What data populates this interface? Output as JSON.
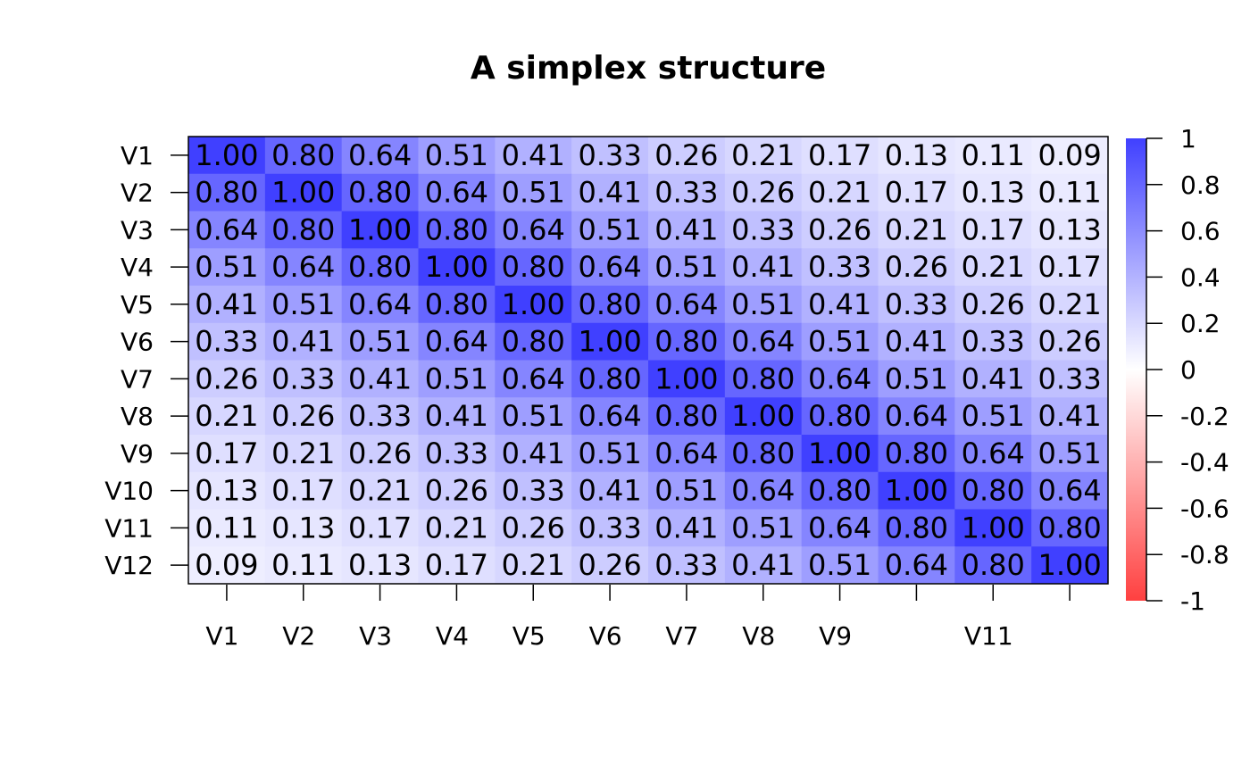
{
  "chart_data": {
    "type": "heatmap",
    "title": "A simplex structure",
    "x": [
      "V1",
      "V2",
      "V3",
      "V4",
      "V5",
      "V6",
      "V7",
      "V8",
      "V9",
      null,
      "V11",
      null
    ],
    "y": [
      "V1",
      "V2",
      "V3",
      "V4",
      "V5",
      "V6",
      "V7",
      "V8",
      "V9",
      "V10",
      "V11",
      "V12"
    ],
    "values": [
      [
        1,
        0.8,
        0.64,
        0.51,
        0.41,
        0.33,
        0.26,
        0.21,
        0.17,
        0.13,
        0.11,
        0.09
      ],
      [
        0.8,
        1,
        0.8,
        0.64,
        0.51,
        0.41,
        0.33,
        0.26,
        0.21,
        0.17,
        0.13,
        0.11
      ],
      [
        0.64,
        0.8,
        1,
        0.8,
        0.64,
        0.51,
        0.41,
        0.33,
        0.26,
        0.21,
        0.17,
        0.13
      ],
      [
        0.51,
        0.64,
        0.8,
        1,
        0.8,
        0.64,
        0.51,
        0.41,
        0.33,
        0.26,
        0.21,
        0.17
      ],
      [
        0.41,
        0.51,
        0.64,
        0.8,
        1,
        0.8,
        0.64,
        0.51,
        0.41,
        0.33,
        0.26,
        0.21
      ],
      [
        0.33,
        0.41,
        0.51,
        0.64,
        0.8,
        1,
        0.8,
        0.64,
        0.51,
        0.41,
        0.33,
        0.26
      ],
      [
        0.26,
        0.33,
        0.41,
        0.51,
        0.64,
        0.8,
        1,
        0.8,
        0.64,
        0.51,
        0.41,
        0.33
      ],
      [
        0.21,
        0.26,
        0.33,
        0.41,
        0.51,
        0.64,
        0.8,
        1,
        0.8,
        0.64,
        0.51,
        0.41
      ],
      [
        0.17,
        0.21,
        0.26,
        0.33,
        0.41,
        0.51,
        0.64,
        0.8,
        1,
        0.8,
        0.64,
        0.51
      ],
      [
        0.13,
        0.17,
        0.21,
        0.26,
        0.33,
        0.41,
        0.51,
        0.64,
        0.8,
        1,
        0.8,
        0.64
      ],
      [
        0.11,
        0.13,
        0.17,
        0.21,
        0.26,
        0.33,
        0.41,
        0.51,
        0.64,
        0.8,
        1,
        0.8
      ],
      [
        0.09,
        0.11,
        0.13,
        0.17,
        0.21,
        0.26,
        0.33,
        0.41,
        0.51,
        0.64,
        0.8,
        1
      ]
    ],
    "value_labels": [
      [
        "1.00",
        "0.80",
        "0.64",
        "0.51",
        "0.41",
        "0.33",
        "0.26",
        "0.21",
        "0.17",
        "0.13",
        "0.11",
        "0.09"
      ],
      [
        "0.80",
        "1.00",
        "0.80",
        "0.64",
        "0.51",
        "0.41",
        "0.33",
        "0.26",
        "0.21",
        "0.17",
        "0.13",
        "0.11"
      ],
      [
        "0.64",
        "0.80",
        "1.00",
        "0.80",
        "0.64",
        "0.51",
        "0.41",
        "0.33",
        "0.26",
        "0.21",
        "0.17",
        "0.13"
      ],
      [
        "0.51",
        "0.64",
        "0.80",
        "1.00",
        "0.80",
        "0.64",
        "0.51",
        "0.41",
        "0.33",
        "0.26",
        "0.21",
        "0.17"
      ],
      [
        "0.41",
        "0.51",
        "0.64",
        "0.80",
        "1.00",
        "0.80",
        "0.64",
        "0.51",
        "0.41",
        "0.33",
        "0.26",
        "0.21"
      ],
      [
        "0.33",
        "0.41",
        "0.51",
        "0.64",
        "0.80",
        "1.00",
        "0.80",
        "0.64",
        "0.51",
        "0.41",
        "0.33",
        "0.26"
      ],
      [
        "0.26",
        "0.33",
        "0.41",
        "0.51",
        "0.64",
        "0.80",
        "1.00",
        "0.80",
        "0.64",
        "0.51",
        "0.41",
        "0.33"
      ],
      [
        "0.21",
        "0.26",
        "0.33",
        "0.41",
        "0.51",
        "0.64",
        "0.80",
        "1.00",
        "0.80",
        "0.64",
        "0.51",
        "0.41"
      ],
      [
        "0.17",
        "0.21",
        "0.26",
        "0.33",
        "0.41",
        "0.51",
        "0.64",
        "0.80",
        "1.00",
        "0.80",
        "0.64",
        "0.51"
      ],
      [
        "0.13",
        "0.17",
        "0.21",
        "0.26",
        "0.33",
        "0.41",
        "0.51",
        "0.64",
        "0.80",
        "1.00",
        "0.80",
        "0.64"
      ],
      [
        "0.11",
        "0.13",
        "0.17",
        "0.21",
        "0.26",
        "0.33",
        "0.41",
        "0.51",
        "0.64",
        "0.80",
        "1.00",
        "0.80"
      ],
      [
        "0.09",
        "0.11",
        "0.13",
        "0.17",
        "0.21",
        "0.26",
        "0.33",
        "0.41",
        "0.51",
        "0.64",
        "0.80",
        "1.00"
      ]
    ],
    "colorscale": [
      "#ff4040",
      "#ffffff",
      "#4040ff"
    ],
    "clim": [
      -1,
      1
    ],
    "cticks": [
      -1,
      -0.8,
      -0.6,
      -0.4,
      -0.2,
      0,
      0.2,
      0.4,
      0.6,
      0.8,
      1
    ]
  }
}
